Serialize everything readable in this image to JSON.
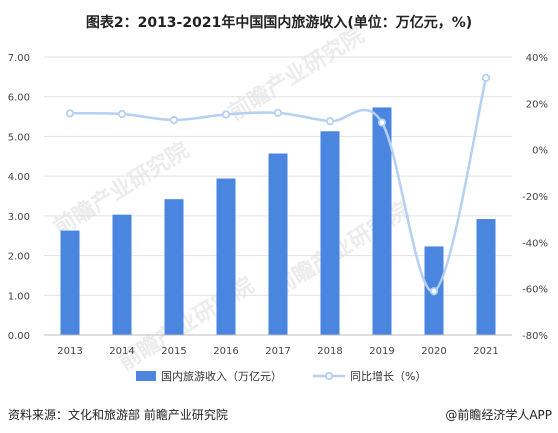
{
  "title": "图表2：2013-2021年中国国内旅游收入(单位：万亿元，%)",
  "source": "资料来源：文化和旅游部 前瞻产业研究院",
  "brand": "@前瞻经济学人APP",
  "watermark": "前瞻产业研究院",
  "colors": {
    "bar": "#4a86e0",
    "line": "#b5d0f2",
    "grid": "#e2e2e2",
    "axis_text": "#444444"
  },
  "chart_data": {
    "type": "bar",
    "categories": [
      "2013",
      "2014",
      "2015",
      "2016",
      "2017",
      "2018",
      "2019",
      "2020",
      "2021"
    ],
    "series": [
      {
        "name": "国内旅游收入（万亿元）",
        "type": "bar",
        "axis": "left",
        "values": [
          2.63,
          3.03,
          3.42,
          3.94,
          4.57,
          5.13,
          5.73,
          2.23,
          2.92
        ]
      },
      {
        "name": "同比增长（%）",
        "type": "line",
        "axis": "right",
        "values": [
          15.7,
          15.4,
          12.8,
          15.2,
          15.9,
          12.3,
          11.7,
          -61.1,
          31.0
        ]
      }
    ],
    "left_axis": {
      "min": 0,
      "max": 7,
      "step": 1,
      "ticks": [
        "0.00",
        "1.00",
        "2.00",
        "3.00",
        "4.00",
        "5.00",
        "6.00",
        "7.00"
      ]
    },
    "right_axis": {
      "min": -80,
      "max": 40,
      "step": 20,
      "ticks": [
        "-80%",
        "-60%",
        "-40%",
        "-20%",
        "0%",
        "20%",
        "40%"
      ]
    },
    "legend_position": "bottom",
    "grid": true
  }
}
